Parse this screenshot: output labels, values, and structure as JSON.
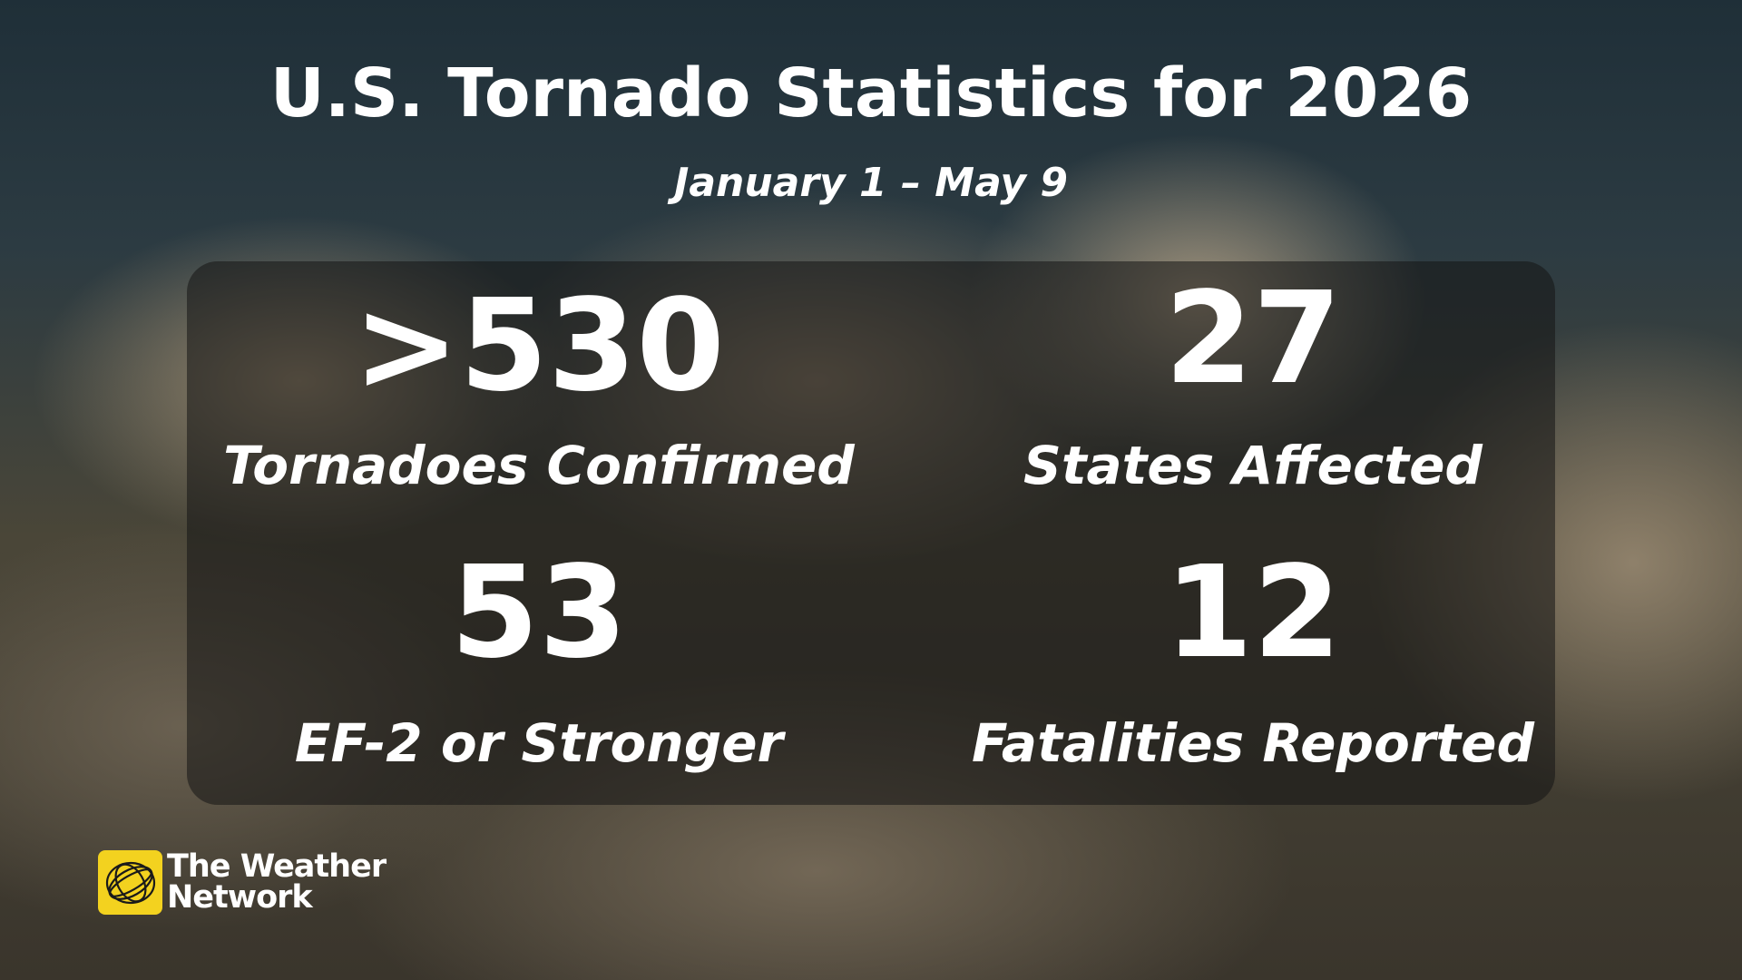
{
  "header": {
    "title": "U.S. Tornado Statistics for 2026",
    "subtitle": "January 1 – May 9"
  },
  "stats": [
    {
      "value": ">530",
      "label": "Tornadoes Confirmed"
    },
    {
      "value": "27",
      "label": "States Affected"
    },
    {
      "value": "53",
      "label": "EF-2 or Stronger"
    },
    {
      "value": "12",
      "label": "Fatalities Reported"
    }
  ],
  "logo": {
    "line1": "The Weather",
    "line2": "Network"
  }
}
